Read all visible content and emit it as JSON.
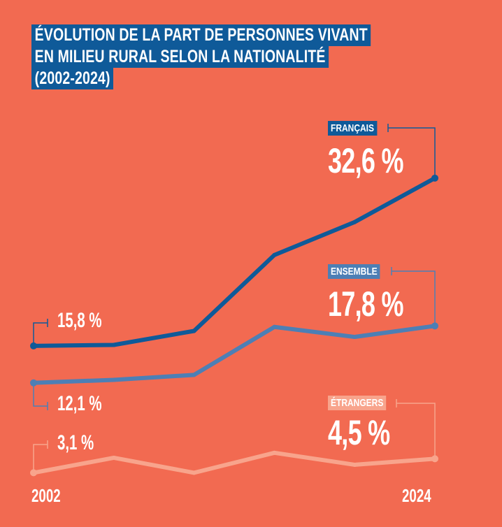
{
  "title": [
    "ÉVOLUTION DE LA PART DE PERSONNES VIVANT",
    "EN MILIEU RURAL SELON LA NATIONALITÉ",
    "(2002-2024)"
  ],
  "colors": {
    "background": "#f26a51",
    "francais": "#0f5a99",
    "ensemble": "#4d7fb5",
    "etrangers": "#f8a48c"
  },
  "chart_data": {
    "type": "line",
    "title": "ÉVOLUTION DE LA PART DE PERSONNES VIVANT EN MILIEU RURAL SELON LA NATIONALITÉ (2002-2024)",
    "x_labels": [
      "2002",
      "2024"
    ],
    "x_points": 6,
    "ylim": [
      0,
      35
    ],
    "grid": false,
    "series": [
      {
        "name": "FRANÇAIS",
        "values": [
          15.8,
          15.9,
          17.3,
          24.9,
          28.2,
          32.6
        ],
        "start_label": "15,8 %",
        "end_label": "32,6 %"
      },
      {
        "name": "ENSEMBLE",
        "values": [
          12.1,
          12.4,
          12.9,
          17.7,
          16.7,
          17.8
        ],
        "start_label": "12,1 %",
        "end_label": "17,8 %"
      },
      {
        "name": "ÉTRANGERS",
        "values": [
          3.1,
          4.6,
          3.1,
          5.1,
          3.9,
          4.5
        ],
        "start_label": "3,1 %",
        "end_label": "4,5 %"
      }
    ]
  }
}
